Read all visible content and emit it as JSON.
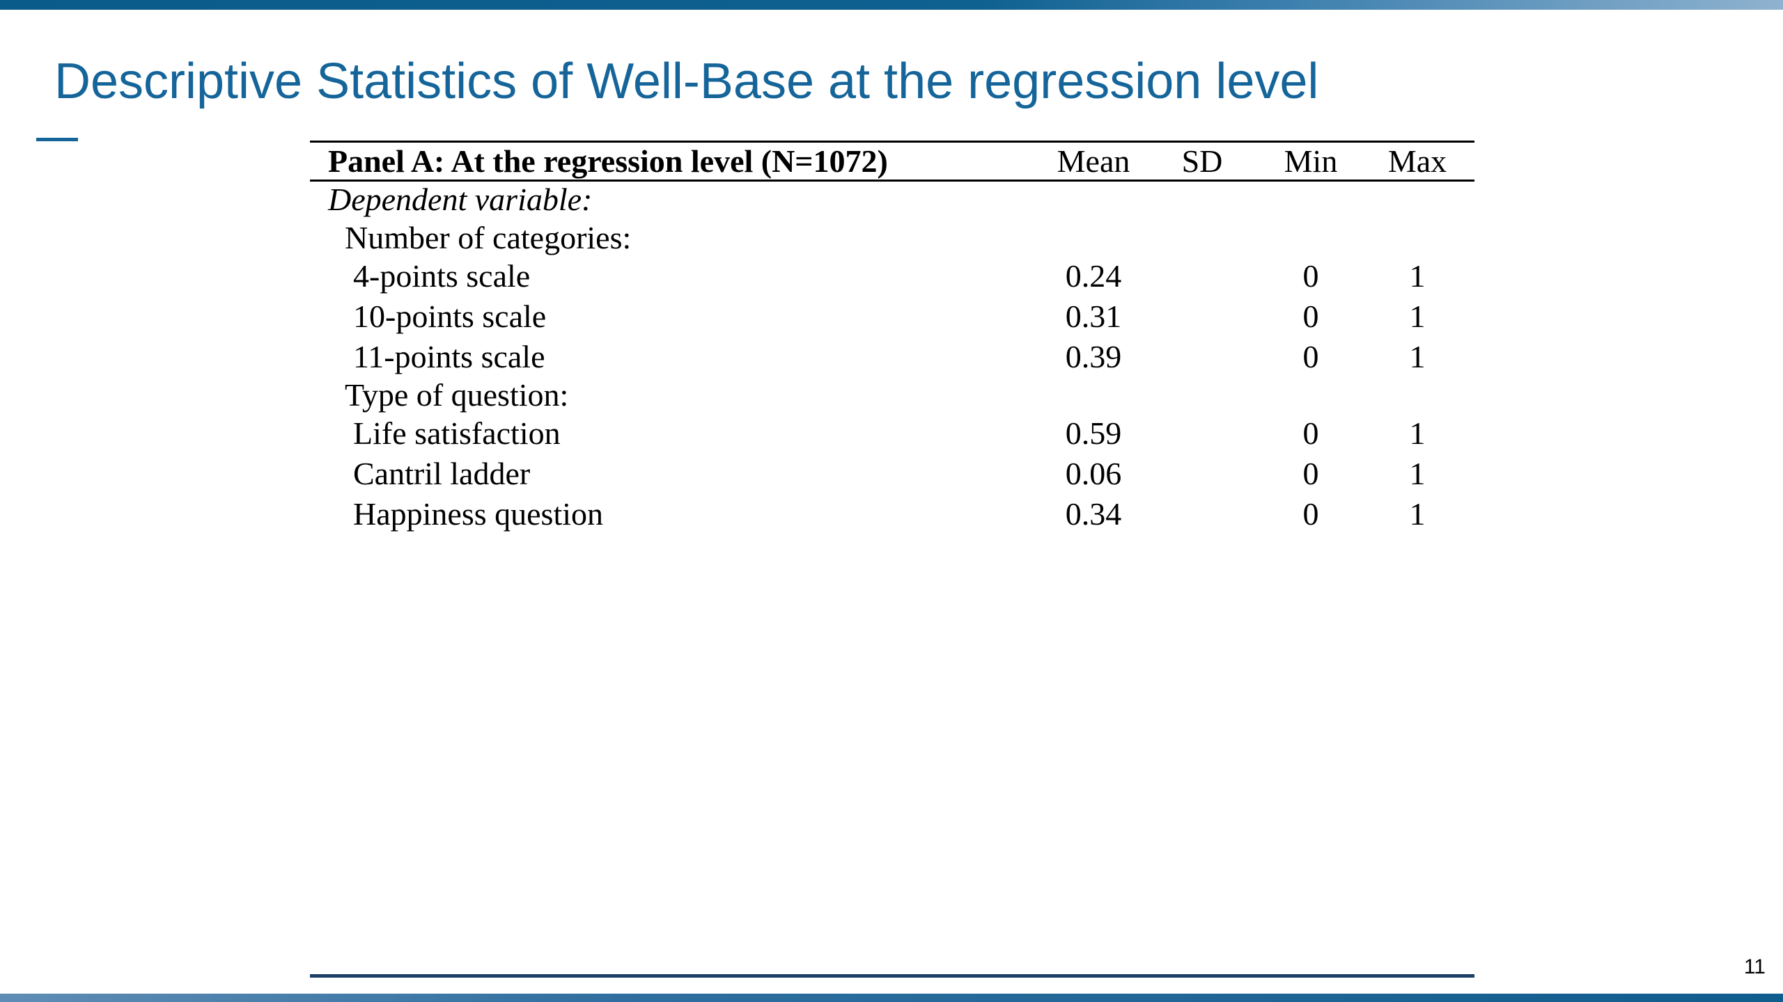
{
  "slide": {
    "title": "Descriptive Statistics of Well-Base at the regression level",
    "page_number": "11"
  },
  "table": {
    "header": {
      "panel": "Panel A: At the regression level (N=1072)",
      "mean": "Mean",
      "sd": "SD",
      "min": "Min",
      "max": "Max"
    },
    "section_label": "Dependent variable:",
    "groups": [
      {
        "label": "Number of categories:",
        "rows": [
          {
            "label": "4-points scale",
            "mean": "0.24",
            "sd": "",
            "min": "0",
            "max": "1"
          },
          {
            "label": "10-points scale",
            "mean": "0.31",
            "sd": "",
            "min": "0",
            "max": "1"
          },
          {
            "label": "11-points scale",
            "mean": "0.39",
            "sd": "",
            "min": "0",
            "max": "1"
          }
        ]
      },
      {
        "label": "Type of question:",
        "rows": [
          {
            "label": "Life satisfaction",
            "mean": "0.59",
            "sd": "",
            "min": "0",
            "max": "1"
          },
          {
            "label": "Cantril ladder",
            "mean": "0.06",
            "sd": "",
            "min": "0",
            "max": "1"
          },
          {
            "label": "Happiness question",
            "mean": "0.34",
            "sd": "",
            "min": "0",
            "max": "1"
          }
        ]
      }
    ]
  },
  "colors": {
    "accent": "#15659a",
    "text": "#000000",
    "background": "#ffffff"
  }
}
